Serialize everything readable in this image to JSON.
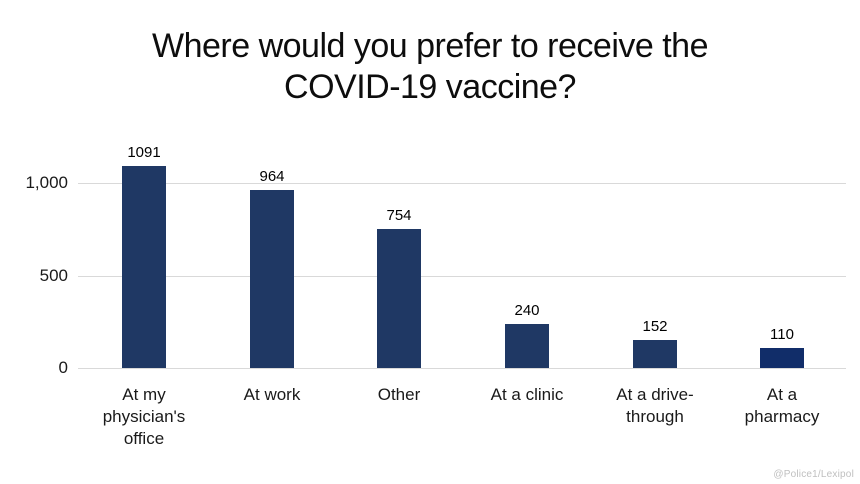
{
  "page": {
    "background_color": "#FFFFFF"
  },
  "title": {
    "line1": "Where would you prefer to receive the",
    "line2": "COVID-19 vaccine?"
  },
  "watermark": "@Police1/Lexipol",
  "colors": {
    "bar_default": "#1F3864",
    "bar_highlight": "#112D69",
    "gridline": "#D9D9D9",
    "title_text": "#0D0D0D",
    "axis_text": "#1A1A1A",
    "data_label_text": "#000000",
    "watermark_text": "#BFBFBF"
  },
  "chart_data": {
    "type": "bar",
    "title": "Where would you prefer to receive the COVID-19 vaccine?",
    "categories": [
      "At my physician's office",
      "At work",
      "Other",
      "At a clinic",
      "At a drive-through",
      "At a pharmacy"
    ],
    "category_display": [
      "At my\nphysician's\noffice",
      "At work",
      "Other",
      "At a clinic",
      "At a drive-\nthrough",
      "At a\npharmacy"
    ],
    "values": [
      1091,
      964,
      754,
      240,
      152,
      110
    ],
    "data_labels": [
      "1091",
      "964",
      "754",
      "240",
      "152",
      "110"
    ],
    "bar_colors": [
      "#1F3864",
      "#1F3864",
      "#1F3864",
      "#1F3864",
      "#1F3864",
      "#112D69"
    ],
    "xlabel": "",
    "ylabel": "",
    "ylim": [
      0,
      1100
    ],
    "yticks": [
      {
        "label": "0",
        "value": 0
      },
      {
        "label": "500",
        "value": 500
      },
      {
        "label": "1,000",
        "value": 1000
      }
    ],
    "grid": true,
    "legend_position": "none"
  }
}
